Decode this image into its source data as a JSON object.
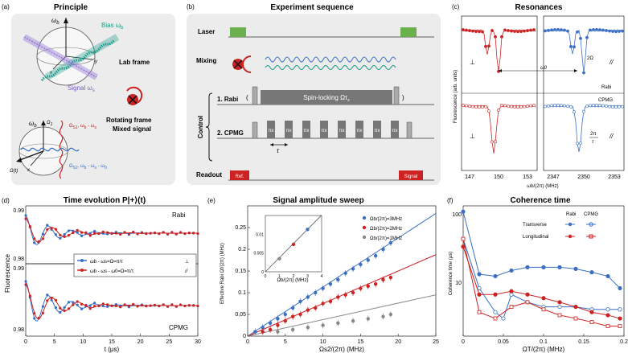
{
  "panels": {
    "a": {
      "letter": "(a)",
      "title": "Principle",
      "bias_label": "Bias ω",
      "bias_sub": "b",
      "lab_frame": "Lab frame",
      "signal_label": "Signal ω",
      "signal_sub": "s",
      "rotating_frame": "Rotating frame",
      "mixed_signal": "Mixed signal",
      "omega_b": "ω",
      "omega_b_sub": "b",
      "omega_1": "Ω",
      "omega_1_sub": "1",
      "omega_s1_expr": "Ω",
      "omega_s1_sub": "S1",
      "omega_s1_rest": ", ω",
      "omega_s1_rest2": " - ω",
      "omega_s2_expr": "Ω",
      "omega_s2_sub": "S2",
      "omega_s2_rest": ", ω",
      "omega_t": "Ω(t)",
      "axis_x": "x",
      "axis_y": "y",
      "axis_z": "z"
    },
    "b": {
      "letter": "(b)",
      "title": "Experiment sequence",
      "laser": "Laser",
      "mixing": "Mixing",
      "control": "Control",
      "rabi": "1. Rabi",
      "cpmg": "2. CPMG",
      "spin_locking": "Spin-locking Ωτ",
      "spin_locking_sub": "x",
      "readout": "Readout",
      "ref": "Ref.",
      "signal": "Signal",
      "pi": "π",
      "pi_x": "x",
      "tau": "τ"
    },
    "c": {
      "letter": "(c)",
      "title": "Resonances",
      "ylabel": "Fluorescence (arb. units)",
      "xlabel": "ωb/(2π) (MHz)",
      "xticks_left": [
        "147",
        "150",
        "153"
      ],
      "xticks_right": [
        "2347",
        "2350",
        "2353"
      ],
      "perp": "⊥",
      "par": "//",
      "omega0": "ω0",
      "two_omega": "2Ω",
      "rabi": "Rabi",
      "cpmg": "CPMG",
      "two_pi_tau_num": "2π",
      "two_pi_tau_den": "τ"
    },
    "d": {
      "letter": "(d)",
      "title": "Time evolution  P|+⟩(t)",
      "ylabel": "Fluorescence",
      "xlabel": "t (μs)",
      "xticks": [
        "0",
        "5",
        "10",
        "15",
        "20",
        "25",
        "30"
      ],
      "yticks_top": [
        "0.99",
        "0.98"
      ],
      "yticks_bot": [
        "0.99",
        "0.98"
      ],
      "rabi": "Rabi",
      "cpmg": "CPMG",
      "legend": [
        {
          "text": "ωb - ωs=Ω=π/τ",
          "mark": "⊥",
          "color": "#3a6fc4"
        },
        {
          "text": "ωb - ωs - ω0=Ω=π/τ",
          "mark": "//",
          "color": "#cc2222"
        }
      ]
    },
    "e": {
      "letter": "(e)",
      "title": "Signal amplitude sweep",
      "ylabel": "Effective Rabi Ωf/(2π) (MHz)",
      "xlabel": "Ωs2/(2π) (MHz)",
      "xticks": [
        "0",
        "5",
        "10",
        "15",
        "20",
        "25"
      ],
      "yticks": [
        "0",
        "0.05",
        "0.1",
        "0.15",
        "0.2",
        "0.25"
      ],
      "inset_xlabel": "Ωb/(2π) (MHz)",
      "inset_xticks": [
        "0",
        "1",
        "2",
        "3",
        "4"
      ],
      "inset_yticks": [
        "0",
        "0.005",
        "0.01"
      ]
    },
    "f": {
      "letter": "(f)",
      "title": "Coherence time",
      "ylabel": "Coherence time (μs)",
      "xlabel": "ΩT/(2π) (MHz)",
      "xticks": [
        "0",
        "0.05",
        "0.1",
        "0.15",
        "0.2"
      ],
      "yticks": [
        "100",
        "10"
      ],
      "col_rabi": "Rabi",
      "col_cpmg": "CPMG",
      "transverse": "Transverse",
      "longitudinal": "Longitudinal"
    }
  },
  "colors": {
    "blue": "#3a6fc4",
    "red": "#cc2222",
    "gray": "#888888",
    "green": "#6ab04c",
    "panel_bg": "#ececec"
  },
  "chart_data": [
    {
      "panel": "e",
      "type": "scatter",
      "title": "Signal amplitude sweep",
      "xlabel": "Ωs2/(2π) (MHz)",
      "ylabel": "Effective Rabi Ωf/(2π) (MHz)",
      "xlim": [
        0,
        25
      ],
      "ylim": [
        0,
        0.3
      ],
      "series": [
        {
          "name": "Ωb/(2π)=3MHz",
          "color": "#3a6fc4",
          "x": [
            1,
            2,
            3,
            4,
            5,
            6,
            7,
            8,
            9,
            10,
            11,
            12,
            13,
            14,
            15,
            16,
            17,
            18,
            19
          ],
          "y": [
            0.01,
            0.02,
            0.03,
            0.04,
            0.05,
            0.065,
            0.08,
            0.09,
            0.1,
            0.11,
            0.12,
            0.13,
            0.145,
            0.155,
            0.165,
            0.175,
            0.185,
            0.2,
            0.215
          ]
        },
        {
          "name": "Ωb/(2π)=2MHz",
          "color": "#cc2222",
          "x": [
            2,
            3,
            4,
            5,
            6,
            7,
            8,
            9,
            10,
            11,
            12,
            13,
            14,
            15,
            16,
            17,
            18,
            19
          ],
          "y": [
            0.01,
            0.015,
            0.025,
            0.035,
            0.045,
            0.05,
            0.06,
            0.065,
            0.075,
            0.08,
            0.09,
            0.095,
            0.1,
            0.11,
            0.115,
            0.12,
            0.13,
            0.135
          ]
        },
        {
          "name": "Ωb/(2π)=1MHz",
          "color": "#888888",
          "x": [
            4,
            6,
            8,
            10,
            12,
            14,
            16,
            18,
            19
          ],
          "y": [
            0.01,
            0.015,
            0.02,
            0.025,
            0.03,
            0.035,
            0.04,
            0.045,
            0.05
          ]
        }
      ],
      "fit_lines": [
        {
          "color": "#3a6fc4",
          "slope": 0.0113
        },
        {
          "color": "#cc2222",
          "slope": 0.0075
        },
        {
          "color": "#888888",
          "slope": 0.0038
        }
      ],
      "inset": {
        "xlabel": "Ωb/(2π) (MHz)",
        "xlim": [
          0,
          4
        ],
        "ylim": [
          0,
          0.015
        ],
        "x": [
          1,
          2,
          3
        ],
        "y": [
          0.0035,
          0.0073,
          0.0113
        ],
        "colors": [
          "#888888",
          "#cc2222",
          "#3a6fc4"
        ]
      }
    },
    {
      "panel": "f",
      "type": "line",
      "title": "Coherence time",
      "xlabel": "ΩT/(2π) (MHz)",
      "ylabel": "Coherence time (μs)",
      "xlim": [
        0,
        0.2
      ],
      "ylim_log": [
        3,
        130
      ],
      "series": [
        {
          "name": "Transverse Rabi",
          "color": "#3a6fc4",
          "filled": true,
          "x": [
            0,
            0.02,
            0.04,
            0.06,
            0.08,
            0.1,
            0.12,
            0.14,
            0.16,
            0.18,
            0.195
          ],
          "y": [
            110,
            18,
            17,
            20,
            22,
            22,
            22,
            21,
            19,
            17,
            12
          ]
        },
        {
          "name": "Transverse CPMG",
          "color": "#3a6fc4",
          "filled": false,
          "x": [
            0,
            0.02,
            0.04,
            0.05,
            0.06,
            0.08,
            0.1,
            0.12,
            0.14,
            0.16,
            0.18,
            0.195
          ],
          "y": [
            50,
            12,
            6,
            5,
            10,
            8,
            7,
            7,
            7,
            6.5,
            6.5,
            6.5
          ]
        },
        {
          "name": "Longitudinal Rabi",
          "color": "#cc2222",
          "filled": true,
          "x": [
            0,
            0.02,
            0.04,
            0.06,
            0.08,
            0.1,
            0.12,
            0.14,
            0.16,
            0.18,
            0.195
          ],
          "y": [
            40,
            10,
            10,
            11,
            10,
            9,
            8,
            7,
            6,
            5.5,
            5
          ]
        },
        {
          "name": "Longitudinal CPMG",
          "color": "#cc2222",
          "filled": false,
          "x": [
            0,
            0.02,
            0.04,
            0.06,
            0.08,
            0.1,
            0.12,
            0.14,
            0.16,
            0.18,
            0.195
          ],
          "y": [
            50,
            6,
            5,
            7,
            8,
            6.5,
            5.5,
            5,
            4.5,
            4,
            4
          ]
        }
      ]
    },
    {
      "panel": "d",
      "type": "line",
      "title": "Time evolution",
      "xlabel": "t (μs)",
      "ylabel": "Fluorescence",
      "xlim": [
        0,
        30
      ],
      "subplots": [
        "Rabi",
        "CPMG"
      ],
      "series": [
        {
          "name": "⊥",
          "color": "#3a6fc4",
          "decay_us": 4.5,
          "period_us": 4.0
        },
        {
          "name": "//",
          "color": "#cc2222",
          "decay_us": 5.0,
          "period_us": 4.6
        }
      ]
    }
  ]
}
